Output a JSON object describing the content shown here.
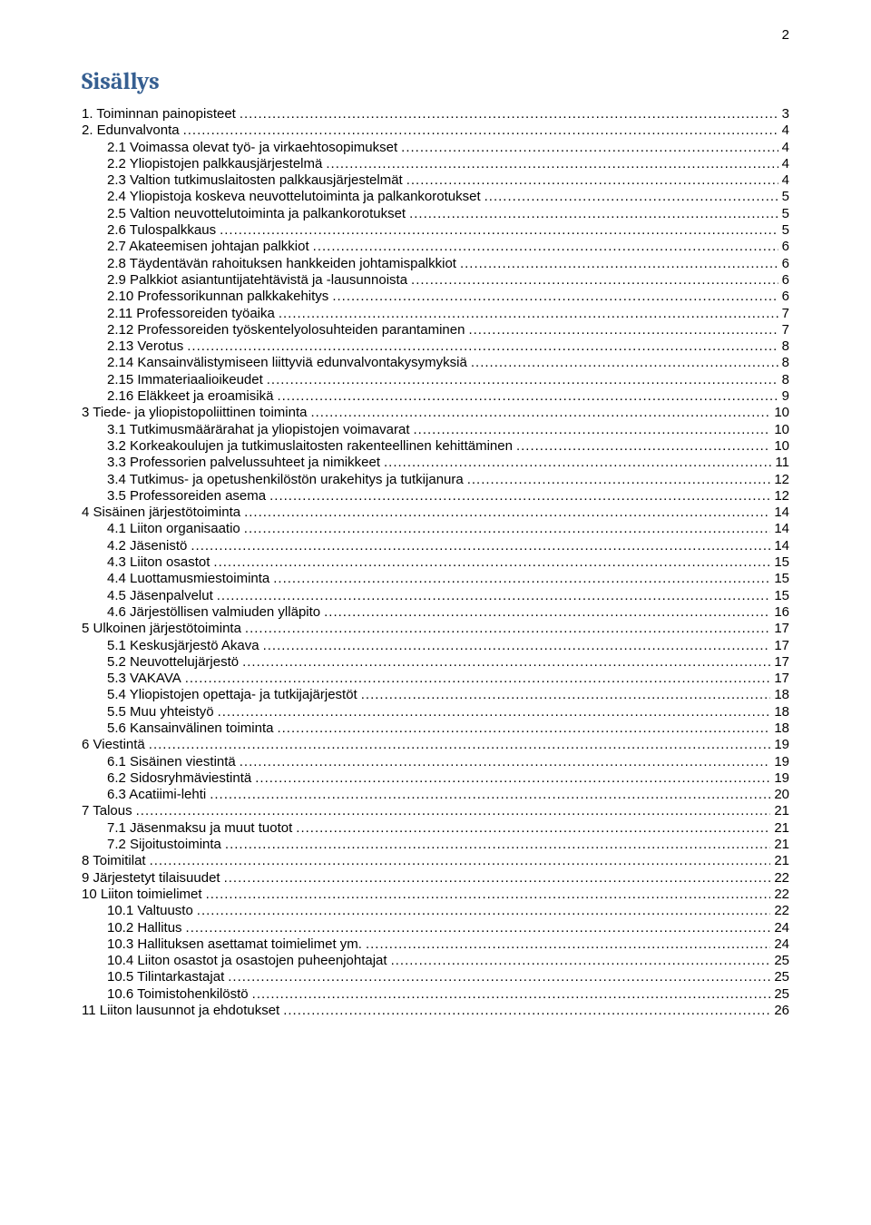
{
  "page_number": "2",
  "title": "Sisällys",
  "title_color": "#365f91",
  "toc": [
    {
      "label": "1. Toiminnan painopisteet",
      "page": "3",
      "level": 0
    },
    {
      "label": "2. Edunvalvonta",
      "page": "4",
      "level": 0
    },
    {
      "label": "2.1 Voimassa olevat työ- ja virkaehtosopimukset",
      "page": "4",
      "level": 1
    },
    {
      "label": "2.2 Yliopistojen palkkausjärjestelmä",
      "page": "4",
      "level": 1
    },
    {
      "label": "2.3 Valtion tutkimuslaitosten palkkausjärjestelmät",
      "page": "4",
      "level": 1
    },
    {
      "label": "2.4 Yliopistoja koskeva neuvottelutoiminta ja palkankorotukset",
      "page": "5",
      "level": 1
    },
    {
      "label": "2.5 Valtion neuvottelutoiminta ja palkankorotukset",
      "page": "5",
      "level": 1
    },
    {
      "label": "2.6 Tulospalkkaus",
      "page": "5",
      "level": 1
    },
    {
      "label": "2.7 Akateemisen johtajan palkkiot",
      "page": "6",
      "level": 1
    },
    {
      "label": "2.8 Täydentävän rahoituksen hankkeiden johtamispalkkiot",
      "page": "6",
      "level": 1
    },
    {
      "label": "2.9 Palkkiot asiantuntijatehtävistä ja -lausunnoista",
      "page": "6",
      "level": 1
    },
    {
      "label": "2.10 Professorikunnan palkkakehitys",
      "page": "6",
      "level": 1
    },
    {
      "label": "2.11 Professoreiden työaika",
      "page": "7",
      "level": 1
    },
    {
      "label": "2.12 Professoreiden työskentelyolosuhteiden parantaminen",
      "page": "7",
      "level": 1
    },
    {
      "label": "2.13 Verotus",
      "page": "8",
      "level": 1
    },
    {
      "label": "2.14 Kansainvälistymiseen liittyviä edunvalvontakysymyksiä",
      "page": "8",
      "level": 1
    },
    {
      "label": "2.15 Immateriaalioikeudet",
      "page": "8",
      "level": 1
    },
    {
      "label": "2.16 Eläkkeet ja eroamisikä",
      "page": "9",
      "level": 1
    },
    {
      "label": "3 Tiede- ja yliopistopoliittinen toiminta",
      "page": "10",
      "level": 0
    },
    {
      "label": "3.1 Tutkimusmäärärahat ja yliopistojen voimavarat",
      "page": "10",
      "level": 1
    },
    {
      "label": "3.2 Korkeakoulujen ja tutkimuslaitosten rakenteellinen kehittäminen",
      "page": "10",
      "level": 1
    },
    {
      "label": "3.3 Professorien palvelussuhteet ja nimikkeet",
      "page": "11",
      "level": 1
    },
    {
      "label": "3.4 Tutkimus- ja opetushenkilöstön urakehitys ja tutkijanura",
      "page": "12",
      "level": 1
    },
    {
      "label": "3.5 Professoreiden asema",
      "page": "12",
      "level": 1
    },
    {
      "label": "4 Sisäinen järjestötoiminta",
      "page": "14",
      "level": 0
    },
    {
      "label": "4.1 Liiton organisaatio",
      "page": "14",
      "level": 1
    },
    {
      "label": "4.2 Jäsenistö",
      "page": "14",
      "level": 1
    },
    {
      "label": "4.3 Liiton osastot",
      "page": "15",
      "level": 1
    },
    {
      "label": "4.4 Luottamusmiestoiminta",
      "page": "15",
      "level": 1
    },
    {
      "label": "4.5 Jäsenpalvelut",
      "page": "15",
      "level": 1
    },
    {
      "label": "4.6 Järjestöllisen valmiuden ylläpito",
      "page": "16",
      "level": 1
    },
    {
      "label": "5 Ulkoinen järjestötoiminta",
      "page": "17",
      "level": 0
    },
    {
      "label": "5.1 Keskusjärjestö Akava",
      "page": "17",
      "level": 1
    },
    {
      "label": "5.2 Neuvottelujärjestö",
      "page": "17",
      "level": 1
    },
    {
      "label": "5.3 VAKAVA",
      "page": "17",
      "level": 1
    },
    {
      "label": "5.4 Yliopistojen opettaja- ja tutkijajärjestöt",
      "page": "18",
      "level": 1
    },
    {
      "label": "5.5 Muu yhteistyö",
      "page": "18",
      "level": 1
    },
    {
      "label": "5.6 Kansainvälinen toiminta",
      "page": "18",
      "level": 1
    },
    {
      "label": "6 Viestintä",
      "page": "19",
      "level": 0
    },
    {
      "label": "6.1 Sisäinen viestintä",
      "page": "19",
      "level": 1
    },
    {
      "label": "6.2 Sidosryhmäviestintä",
      "page": "19",
      "level": 1
    },
    {
      "label": "6.3 Acatiimi-lehti",
      "page": "20",
      "level": 1
    },
    {
      "label": "7 Talous",
      "page": "21",
      "level": 0
    },
    {
      "label": "7.1 Jäsenmaksu ja muut tuotot",
      "page": "21",
      "level": 1
    },
    {
      "label": "7.2 Sijoitustoiminta",
      "page": "21",
      "level": 1
    },
    {
      "label": "8 Toimitilat",
      "page": "21",
      "level": 0
    },
    {
      "label": "9 Järjestetyt tilaisuudet",
      "page": "22",
      "level": 0
    },
    {
      "label": "10 Liiton toimielimet",
      "page": "22",
      "level": 0
    },
    {
      "label": "10.1 Valtuusto",
      "page": "22",
      "level": 1
    },
    {
      "label": "10.2 Hallitus",
      "page": "24",
      "level": 1
    },
    {
      "label": "10.3 Hallituksen asettamat toimielimet ym.",
      "page": "24",
      "level": 1
    },
    {
      "label": "10.4 Liiton osastot ja osastojen puheenjohtajat",
      "page": "25",
      "level": 1
    },
    {
      "label": "10.5 Tilintarkastajat",
      "page": "25",
      "level": 1
    },
    {
      "label": "10.6 Toimistohenkilöstö",
      "page": "25",
      "level": 1
    },
    {
      "label": "11 Liiton lausunnot ja ehdotukset",
      "page": "26",
      "level": 0
    }
  ]
}
